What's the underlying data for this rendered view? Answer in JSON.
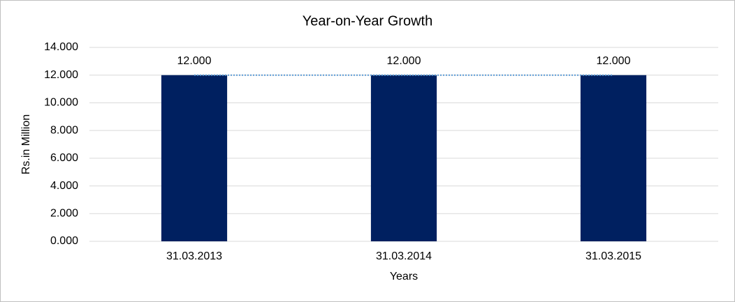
{
  "chart_data": {
    "type": "bar",
    "title": "Year-on-Year Growth",
    "x_label": "Years",
    "y_label": "Rs.in Million",
    "categories": [
      "31.03.2013",
      "31.03.2014",
      "31.03.2015"
    ],
    "values": [
      12,
      12,
      12
    ],
    "value_labels": [
      "12.000",
      "12.000",
      "12.000"
    ],
    "color": "#002060",
    "trendline": true,
    "trendline_color": "#5b9bd5",
    "ylim": [
      0,
      14
    ],
    "yticks": [
      {
        "value": 0,
        "label": "0.000"
      },
      {
        "value": 2,
        "label": "2.000"
      },
      {
        "value": 4,
        "label": "4.000"
      },
      {
        "value": 6,
        "label": "6.000"
      },
      {
        "value": 8,
        "label": "8.000"
      },
      {
        "value": 10,
        "label": "10.000"
      },
      {
        "value": 12,
        "label": "12.000"
      },
      {
        "value": 14,
        "label": "14.000"
      }
    ],
    "grid": true
  }
}
